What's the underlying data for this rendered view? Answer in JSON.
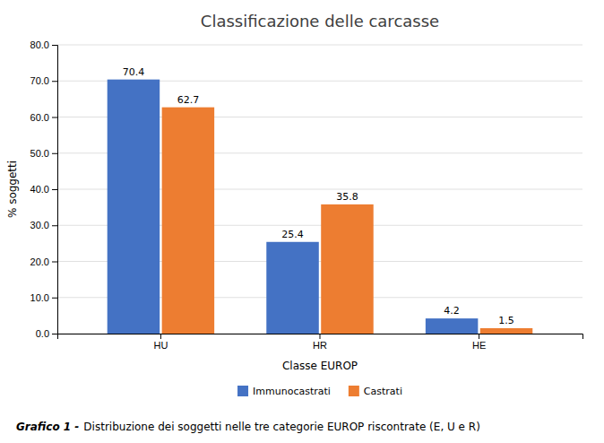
{
  "chart_data": {
    "type": "bar",
    "title": "Classificazione delle carcasse",
    "categories": [
      "HU",
      "HR",
      "HE"
    ],
    "series": [
      {
        "name": "Immunocastrati",
        "color": "#4472C4",
        "values": [
          70.4,
          25.4,
          4.2
        ]
      },
      {
        "name": "Castrati",
        "color": "#ED7D31",
        "values": [
          62.7,
          35.8,
          1.5
        ]
      }
    ],
    "xlabel": "Classe EUROP",
    "ylabel": "% soggetti",
    "ylim": [
      0,
      80
    ],
    "yticks": [
      {
        "value": 0,
        "label": "0.0"
      },
      {
        "value": 10,
        "label": "10.0"
      },
      {
        "value": 20,
        "label": "20.0"
      },
      {
        "value": 30,
        "label": "30.0"
      },
      {
        "value": 40,
        "label": "40.0"
      },
      {
        "value": 50,
        "label": "50.0"
      },
      {
        "value": 60,
        "label": "60.0"
      },
      {
        "value": 70,
        "label": "70.0"
      },
      {
        "value": 80,
        "label": "80.0"
      }
    ],
    "grid": true,
    "legend": "bottom",
    "data_labels": true,
    "annotations": [
      "Grafico 1 -",
      "Distribuzione dei soggetti nelle tre categorie EUROP riscontrate (E, U e R)"
    ]
  }
}
